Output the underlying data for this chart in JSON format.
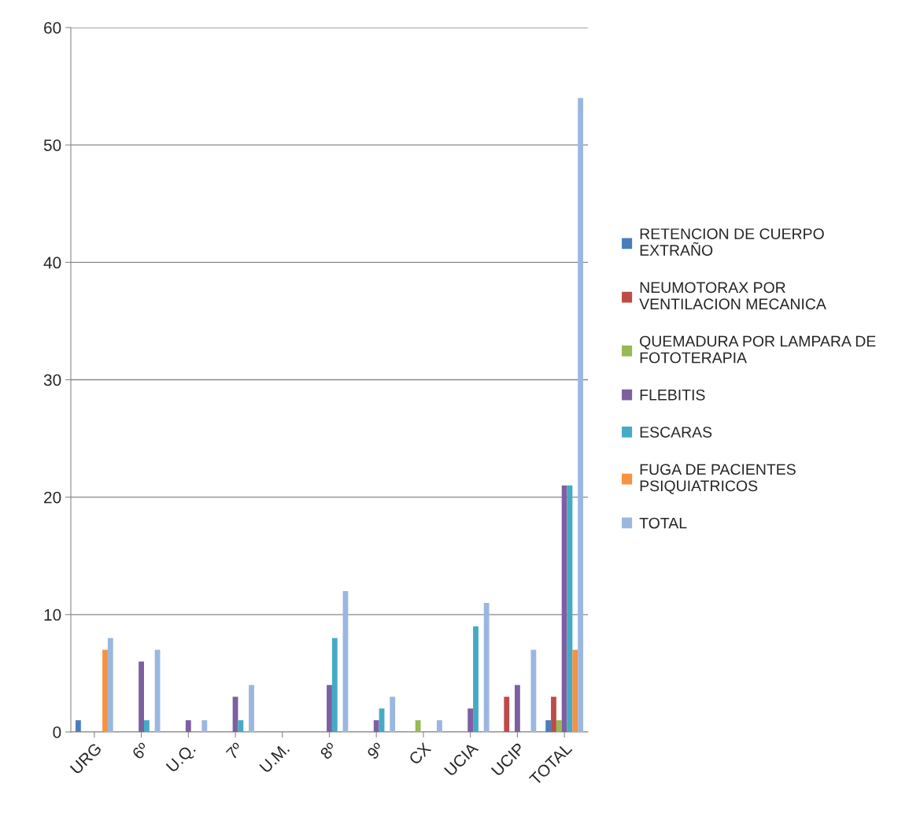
{
  "chart_data": {
    "type": "bar",
    "categories": [
      "URG",
      "6º",
      "U.Q.",
      "7º",
      "U.M.",
      "8º",
      "9º",
      "CX",
      "UCIA",
      "UCIP",
      "TOTAL"
    ],
    "series": [
      {
        "name": "RETENCION DE CUERPO EXTRAÑO",
        "color": "#4a7ebb",
        "values": [
          1,
          0,
          0,
          0,
          0,
          0,
          0,
          0,
          0,
          0,
          1
        ]
      },
      {
        "name": "NEUMOTORAX POR VENTILACION MECANICA",
        "color": "#be4b48",
        "values": [
          0,
          0,
          0,
          0,
          0,
          0,
          0,
          0,
          0,
          3,
          3
        ]
      },
      {
        "name": "QUEMADURA POR LAMPARA DE FOTOTERAPIA",
        "color": "#98b954",
        "values": [
          0,
          0,
          0,
          0,
          0,
          0,
          0,
          1,
          0,
          0,
          1
        ]
      },
      {
        "name": "FLEBITIS",
        "color": "#7d60a0",
        "values": [
          0,
          6,
          1,
          3,
          0,
          4,
          1,
          0,
          2,
          4,
          21
        ]
      },
      {
        "name": "ESCARAS",
        "color": "#46aac5",
        "values": [
          0,
          1,
          0,
          1,
          0,
          8,
          2,
          0,
          9,
          0,
          21
        ]
      },
      {
        "name": "FUGA DE PACIENTES PSIQUIATRICOS",
        "color": "#f69240",
        "values": [
          7,
          0,
          0,
          0,
          0,
          0,
          0,
          0,
          0,
          0,
          7
        ]
      },
      {
        "name": "TOTAL",
        "color": "#9bb7e0",
        "values": [
          8,
          7,
          1,
          4,
          0,
          12,
          3,
          1,
          11,
          7,
          54
        ]
      }
    ],
    "ylim": [
      0,
      60
    ],
    "yticks": [
      0,
      10,
      20,
      30,
      40,
      50,
      60
    ],
    "grid": "y",
    "legend": "right"
  }
}
